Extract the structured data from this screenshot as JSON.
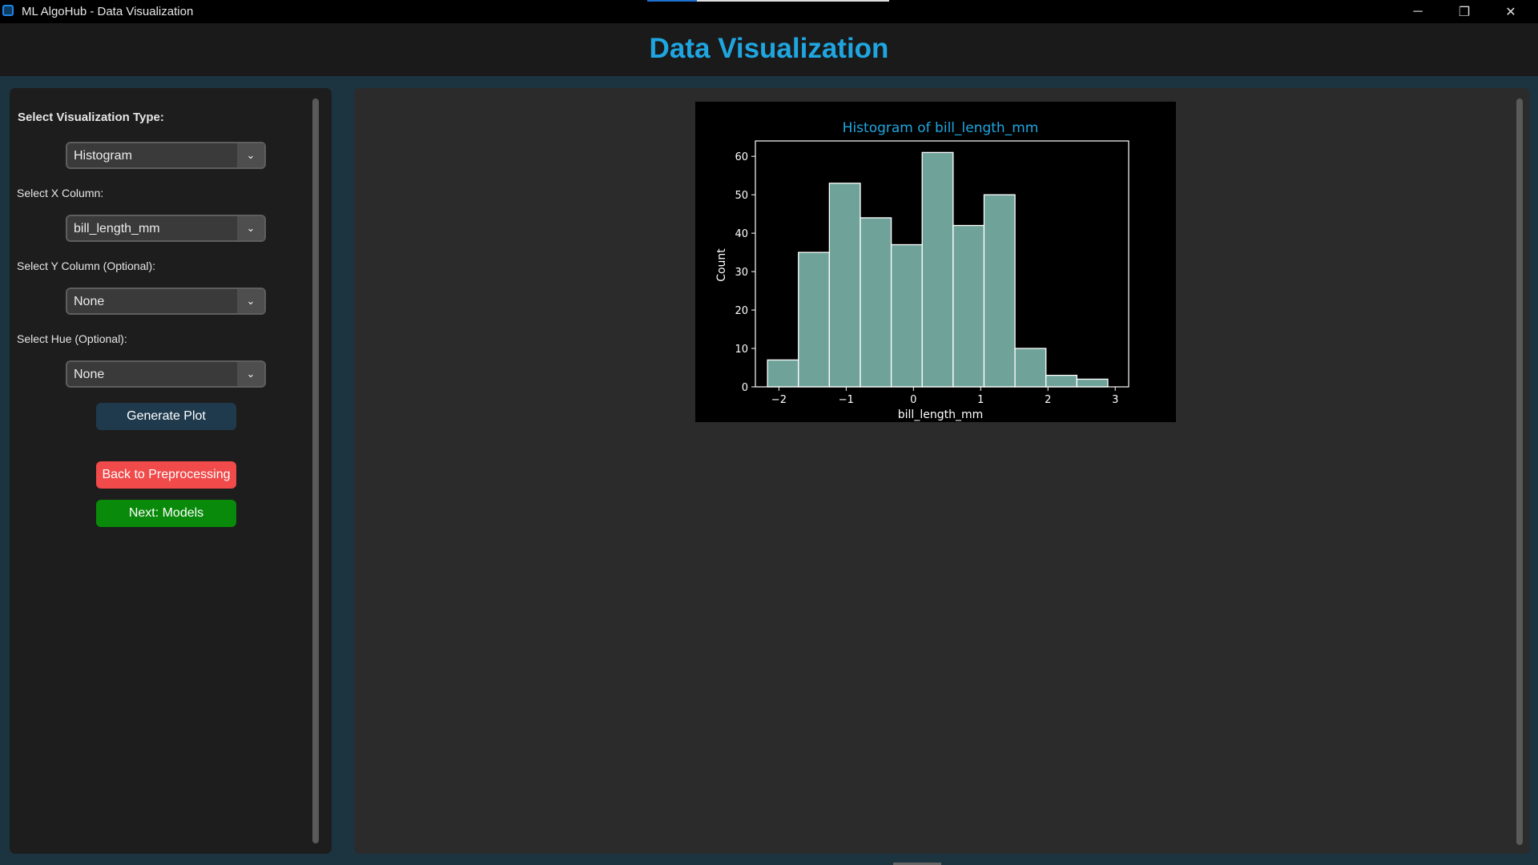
{
  "window": {
    "title": "ML AlgoHub - Data Visualization",
    "controls": {
      "minimize": "─",
      "maximize": "❐",
      "close": "✕"
    }
  },
  "header": {
    "title": "Data Visualization"
  },
  "sidebar": {
    "viz_type_label": "Select Visualization Type:",
    "viz_type_value": "Histogram",
    "x_label": "Select X Column:",
    "x_value": "bill_length_mm",
    "y_label": "Select Y Column (Optional):",
    "y_value": "None",
    "hue_label": "Select Hue (Optional):",
    "hue_value": "None",
    "generate_label": "Generate Plot",
    "back_label": "Back to Preprocessing",
    "next_label": "Next: Models"
  },
  "colors": {
    "accent": "#1fa6e0",
    "generate_button": "#1f3a4d",
    "back_button": "#f04a4a",
    "next_button": "#0a8a0a",
    "bar_fill": "#6fa39a"
  },
  "chart_data": {
    "type": "bar",
    "title": "Histogram of bill_length_mm",
    "xlabel": "bill_length_mm",
    "ylabel": "Count",
    "xlim": [
      -2.35,
      3.2
    ],
    "ylim": [
      0,
      64
    ],
    "xticks": [
      -2,
      -1,
      0,
      1,
      2,
      3
    ],
    "xtick_labels": [
      "−2",
      "−1",
      "0",
      "1",
      "2",
      "3"
    ],
    "yticks": [
      0,
      10,
      20,
      30,
      40,
      50,
      60
    ],
    "bins": [
      {
        "x0": -2.17,
        "x1": -1.71,
        "count": 7
      },
      {
        "x0": -1.71,
        "x1": -1.25,
        "count": 35
      },
      {
        "x0": -1.25,
        "x1": -0.79,
        "count": 53
      },
      {
        "x0": -0.79,
        "x1": -0.33,
        "count": 44
      },
      {
        "x0": -0.33,
        "x1": 0.13,
        "count": 37
      },
      {
        "x0": 0.13,
        "x1": 0.59,
        "count": 61
      },
      {
        "x0": 0.59,
        "x1": 1.05,
        "count": 42
      },
      {
        "x0": 1.05,
        "x1": 1.51,
        "count": 50
      },
      {
        "x0": 1.51,
        "x1": 1.97,
        "count": 10
      },
      {
        "x0": 1.97,
        "x1": 2.43,
        "count": 3
      },
      {
        "x0": 2.43,
        "x1": 2.89,
        "count": 2
      }
    ]
  }
}
